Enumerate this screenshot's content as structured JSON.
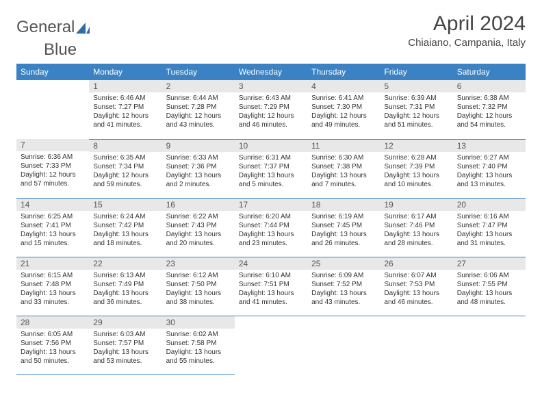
{
  "brand": {
    "name1": "General",
    "name2": "Blue",
    "sail_color": "#2e6ca8"
  },
  "title": "April 2024",
  "subtitle": "Chiaiano, Campania, Italy",
  "colors": {
    "header_bg": "#3b82c4",
    "header_text": "#ffffff",
    "daynum_bg": "#e8e8e8",
    "border": "#3b82c4",
    "text": "#333333",
    "background": "#ffffff"
  },
  "typography": {
    "title_fontsize": 30,
    "subtitle_fontsize": 15,
    "dayheader_fontsize": 12,
    "cell_fontsize": 10
  },
  "day_headers": [
    "Sunday",
    "Monday",
    "Tuesday",
    "Wednesday",
    "Thursday",
    "Friday",
    "Saturday"
  ],
  "weeks": [
    [
      null,
      {
        "n": "1",
        "sr": "Sunrise: 6:46 AM",
        "ss": "Sunset: 7:27 PM",
        "d1": "Daylight: 12 hours",
        "d2": "and 41 minutes."
      },
      {
        "n": "2",
        "sr": "Sunrise: 6:44 AM",
        "ss": "Sunset: 7:28 PM",
        "d1": "Daylight: 12 hours",
        "d2": "and 43 minutes."
      },
      {
        "n": "3",
        "sr": "Sunrise: 6:43 AM",
        "ss": "Sunset: 7:29 PM",
        "d1": "Daylight: 12 hours",
        "d2": "and 46 minutes."
      },
      {
        "n": "4",
        "sr": "Sunrise: 6:41 AM",
        "ss": "Sunset: 7:30 PM",
        "d1": "Daylight: 12 hours",
        "d2": "and 49 minutes."
      },
      {
        "n": "5",
        "sr": "Sunrise: 6:39 AM",
        "ss": "Sunset: 7:31 PM",
        "d1": "Daylight: 12 hours",
        "d2": "and 51 minutes."
      },
      {
        "n": "6",
        "sr": "Sunrise: 6:38 AM",
        "ss": "Sunset: 7:32 PM",
        "d1": "Daylight: 12 hours",
        "d2": "and 54 minutes."
      }
    ],
    [
      {
        "n": "7",
        "sr": "Sunrise: 6:36 AM",
        "ss": "Sunset: 7:33 PM",
        "d1": "Daylight: 12 hours",
        "d2": "and 57 minutes."
      },
      {
        "n": "8",
        "sr": "Sunrise: 6:35 AM",
        "ss": "Sunset: 7:34 PM",
        "d1": "Daylight: 12 hours",
        "d2": "and 59 minutes."
      },
      {
        "n": "9",
        "sr": "Sunrise: 6:33 AM",
        "ss": "Sunset: 7:36 PM",
        "d1": "Daylight: 13 hours",
        "d2": "and 2 minutes."
      },
      {
        "n": "10",
        "sr": "Sunrise: 6:31 AM",
        "ss": "Sunset: 7:37 PM",
        "d1": "Daylight: 13 hours",
        "d2": "and 5 minutes."
      },
      {
        "n": "11",
        "sr": "Sunrise: 6:30 AM",
        "ss": "Sunset: 7:38 PM",
        "d1": "Daylight: 13 hours",
        "d2": "and 7 minutes."
      },
      {
        "n": "12",
        "sr": "Sunrise: 6:28 AM",
        "ss": "Sunset: 7:39 PM",
        "d1": "Daylight: 13 hours",
        "d2": "and 10 minutes."
      },
      {
        "n": "13",
        "sr": "Sunrise: 6:27 AM",
        "ss": "Sunset: 7:40 PM",
        "d1": "Daylight: 13 hours",
        "d2": "and 13 minutes."
      }
    ],
    [
      {
        "n": "14",
        "sr": "Sunrise: 6:25 AM",
        "ss": "Sunset: 7:41 PM",
        "d1": "Daylight: 13 hours",
        "d2": "and 15 minutes."
      },
      {
        "n": "15",
        "sr": "Sunrise: 6:24 AM",
        "ss": "Sunset: 7:42 PM",
        "d1": "Daylight: 13 hours",
        "d2": "and 18 minutes."
      },
      {
        "n": "16",
        "sr": "Sunrise: 6:22 AM",
        "ss": "Sunset: 7:43 PM",
        "d1": "Daylight: 13 hours",
        "d2": "and 20 minutes."
      },
      {
        "n": "17",
        "sr": "Sunrise: 6:20 AM",
        "ss": "Sunset: 7:44 PM",
        "d1": "Daylight: 13 hours",
        "d2": "and 23 minutes."
      },
      {
        "n": "18",
        "sr": "Sunrise: 6:19 AM",
        "ss": "Sunset: 7:45 PM",
        "d1": "Daylight: 13 hours",
        "d2": "and 26 minutes."
      },
      {
        "n": "19",
        "sr": "Sunrise: 6:17 AM",
        "ss": "Sunset: 7:46 PM",
        "d1": "Daylight: 13 hours",
        "d2": "and 28 minutes."
      },
      {
        "n": "20",
        "sr": "Sunrise: 6:16 AM",
        "ss": "Sunset: 7:47 PM",
        "d1": "Daylight: 13 hours",
        "d2": "and 31 minutes."
      }
    ],
    [
      {
        "n": "21",
        "sr": "Sunrise: 6:15 AM",
        "ss": "Sunset: 7:48 PM",
        "d1": "Daylight: 13 hours",
        "d2": "and 33 minutes."
      },
      {
        "n": "22",
        "sr": "Sunrise: 6:13 AM",
        "ss": "Sunset: 7:49 PM",
        "d1": "Daylight: 13 hours",
        "d2": "and 36 minutes."
      },
      {
        "n": "23",
        "sr": "Sunrise: 6:12 AM",
        "ss": "Sunset: 7:50 PM",
        "d1": "Daylight: 13 hours",
        "d2": "and 38 minutes."
      },
      {
        "n": "24",
        "sr": "Sunrise: 6:10 AM",
        "ss": "Sunset: 7:51 PM",
        "d1": "Daylight: 13 hours",
        "d2": "and 41 minutes."
      },
      {
        "n": "25",
        "sr": "Sunrise: 6:09 AM",
        "ss": "Sunset: 7:52 PM",
        "d1": "Daylight: 13 hours",
        "d2": "and 43 minutes."
      },
      {
        "n": "26",
        "sr": "Sunrise: 6:07 AM",
        "ss": "Sunset: 7:53 PM",
        "d1": "Daylight: 13 hours",
        "d2": "and 46 minutes."
      },
      {
        "n": "27",
        "sr": "Sunrise: 6:06 AM",
        "ss": "Sunset: 7:55 PM",
        "d1": "Daylight: 13 hours",
        "d2": "and 48 minutes."
      }
    ],
    [
      {
        "n": "28",
        "sr": "Sunrise: 6:05 AM",
        "ss": "Sunset: 7:56 PM",
        "d1": "Daylight: 13 hours",
        "d2": "and 50 minutes."
      },
      {
        "n": "29",
        "sr": "Sunrise: 6:03 AM",
        "ss": "Sunset: 7:57 PM",
        "d1": "Daylight: 13 hours",
        "d2": "and 53 minutes."
      },
      {
        "n": "30",
        "sr": "Sunrise: 6:02 AM",
        "ss": "Sunset: 7:58 PM",
        "d1": "Daylight: 13 hours",
        "d2": "and 55 minutes."
      },
      null,
      null,
      null,
      null
    ]
  ]
}
